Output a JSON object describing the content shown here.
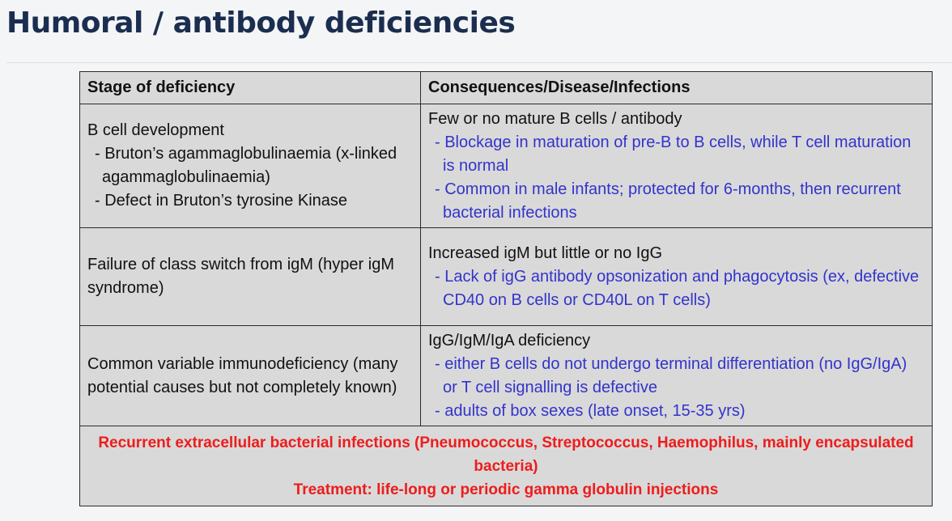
{
  "title": "Humoral / antibody deficiencies",
  "table": {
    "headers": [
      "Stage of deficiency",
      "Consequences/Disease/Infections"
    ],
    "rows": [
      {
        "stage_title": "B cell development",
        "stage_points": [
          "- Bruton’s agammaglobulinaemia (x-linked agammaglobulinaemia)",
          "- Defect in Bruton’s tyrosine Kinase"
        ],
        "consequence_title": "Few or no mature B cells / antibody",
        "consequence_points": [
          "- Blockage in maturation of pre-B to B cells, while T cell maturation is normal",
          "- Common in male infants; protected for 6-months, then recurrent bacterial infections"
        ]
      },
      {
        "stage_title": "Failure of class switch from igM (hyper igM syndrome)",
        "consequence_title": "Increased igM but little or no IgG",
        "consequence_points": [
          "- Lack of igG antibody opsonization and phagocytosis (ex, defective CD40 on B cells or CD40L on T cells)"
        ]
      },
      {
        "stage_title": "Common variable immunodeficiency (many potential causes but not completely known)",
        "consequence_title": "IgG/IgM/IgA deficiency",
        "consequence_points": [
          "- either B cells do not undergo terminal differentiation (no IgG/IgA) or T cell signalling is defective",
          "- adults of box sexes (late onset, 15-35 yrs)"
        ]
      }
    ],
    "footer": {
      "line1": "Recurrent extracellular bacterial infections (Pneumococcus, Streptococcus, Haemophilus, mainly encapsulated bacteria)",
      "line2": "Treatment: life-long or periodic gamma globulin injections"
    }
  },
  "colors": {
    "title": "#1b2e4f",
    "table_bg": "#d9d9d9",
    "blue_text": "#3333cc",
    "red_text": "#ee1c1c"
  }
}
